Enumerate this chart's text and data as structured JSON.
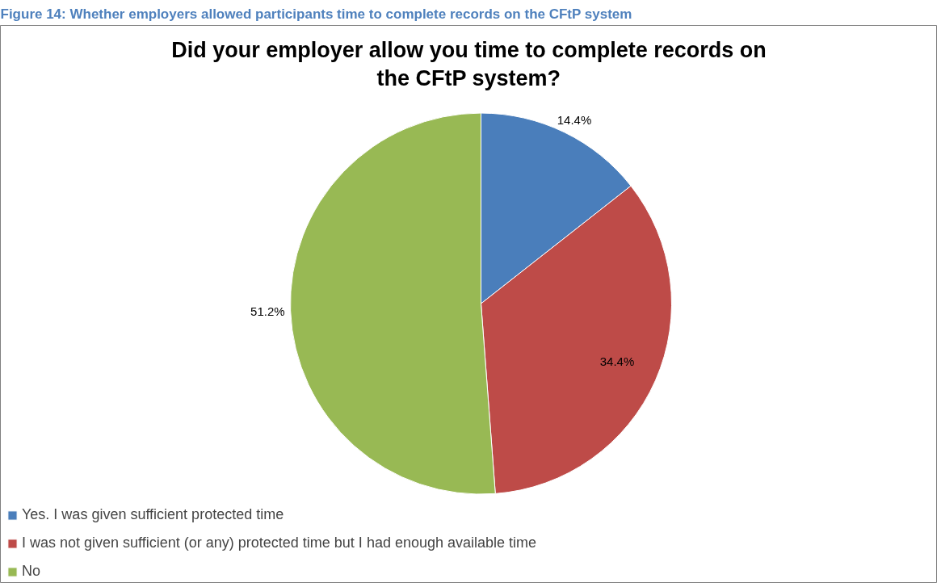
{
  "chart_data": {
    "type": "pie",
    "title": "Did your employer allow you time to complete records on the CFtP system?",
    "annotations": [
      "Figure 14: Whether employers allowed participants time to complete records on the CFtP system"
    ],
    "categories": [
      "Yes. I was given sufficient protected time",
      "I was not given sufficient (or any) protected time but I had enough available time",
      "No"
    ],
    "values": [
      14.4,
      34.4,
      51.2
    ],
    "colors": [
      "#4a7ebb",
      "#be4b48",
      "#98b954"
    ],
    "value_labels": [
      "14.4%",
      "34.4%",
      "51.2%"
    ],
    "legend": "bottom"
  }
}
